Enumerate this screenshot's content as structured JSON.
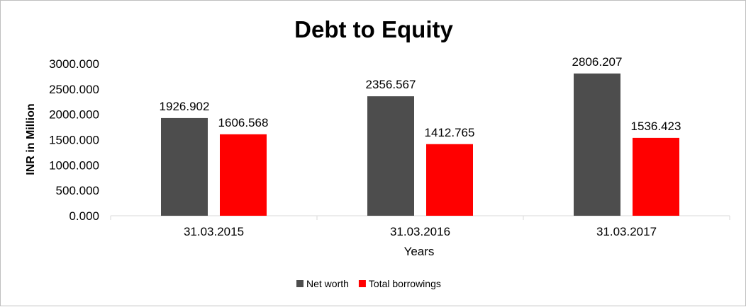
{
  "chart_data": {
    "type": "bar",
    "title": "Debt to Equity",
    "xlabel": "Years",
    "ylabel": "INR in Million",
    "categories": [
      "31.03.2015",
      "31.03.2016",
      "31.03.2017"
    ],
    "series": [
      {
        "name": "Net worth",
        "color": "#4d4d4d",
        "values": [
          1926.902,
          2356.567,
          2806.207
        ],
        "labels": [
          "1926.902",
          "2356.567",
          "2806.207"
        ]
      },
      {
        "name": "Total borrowings",
        "color": "#ff0000",
        "values": [
          1606.568,
          1412.765,
          1536.423
        ],
        "labels": [
          "1606.568",
          "1412.765",
          "1536.423"
        ]
      }
    ],
    "ylim": [
      0,
      3000
    ],
    "yticks": [
      0,
      500,
      1000,
      1500,
      2000,
      2500,
      3000
    ],
    "ytick_labels": [
      "0.000",
      "500.000",
      "1000.000",
      "1500.000",
      "2000.000",
      "2500.000",
      "3000.000"
    ],
    "grid": false,
    "legend_position": "bottom"
  }
}
